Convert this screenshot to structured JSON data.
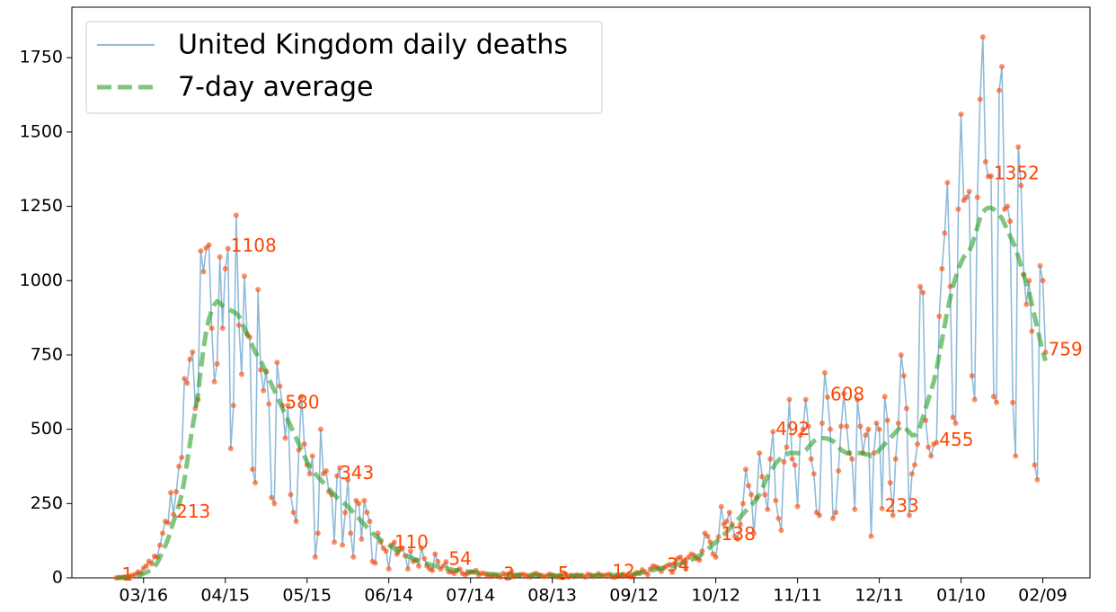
{
  "chart_data": {
    "type": "line",
    "categories": [
      null,
      null,
      null,
      null,
      null,
      null,
      null,
      null,
      null,
      null,
      "03/16",
      null,
      null,
      null,
      null,
      null,
      null,
      null,
      null,
      null,
      null,
      null,
      null,
      null,
      null,
      null,
      null,
      null,
      null,
      null,
      null,
      null,
      null,
      null,
      null,
      null,
      null,
      null,
      null,
      null,
      "04/15",
      null,
      null,
      null,
      null,
      null,
      null,
      null,
      null,
      null,
      null,
      null,
      null,
      null,
      null,
      null,
      null,
      null,
      null,
      null,
      null,
      null,
      null,
      null,
      null,
      null,
      null,
      null,
      null,
      null,
      "05/15",
      null,
      null,
      null,
      null,
      null,
      null,
      null,
      null,
      null,
      null,
      null,
      null,
      null,
      null,
      null,
      null,
      null,
      null,
      null,
      null,
      null,
      null,
      null,
      null,
      null,
      null,
      null,
      null,
      null,
      "06/14",
      null,
      null,
      null,
      null,
      null,
      null,
      null,
      null,
      null,
      null,
      null,
      null,
      null,
      null,
      null,
      null,
      null,
      null,
      null,
      null,
      null,
      null,
      null,
      null,
      null,
      null,
      null,
      null,
      null,
      "07/14",
      null,
      null,
      null,
      null,
      null,
      null,
      null,
      null,
      null,
      null,
      null,
      null,
      null,
      null,
      null,
      null,
      null,
      null,
      null,
      null,
      null,
      null,
      null,
      null,
      null,
      null,
      null,
      null,
      null,
      "08/13",
      null,
      null,
      null,
      null,
      null,
      null,
      null,
      null,
      null,
      null,
      null,
      null,
      null,
      null,
      null,
      null,
      null,
      null,
      null,
      null,
      null,
      null,
      null,
      null,
      null,
      null,
      null,
      null,
      null,
      "09/12",
      null,
      null,
      null,
      null,
      null,
      null,
      null,
      null,
      null,
      null,
      null,
      null,
      null,
      null,
      null,
      null,
      null,
      null,
      null,
      null,
      null,
      null,
      null,
      null,
      null,
      null,
      null,
      null,
      null,
      "10/12",
      null,
      null,
      null,
      null,
      null,
      null,
      null,
      null,
      null,
      null,
      null,
      null,
      null,
      null,
      null,
      null,
      null,
      null,
      null,
      null,
      null,
      null,
      null,
      null,
      null,
      null,
      null,
      null,
      null,
      "11/11",
      null,
      null,
      null,
      null,
      null,
      null,
      null,
      null,
      null,
      null,
      null,
      null,
      null,
      null,
      null,
      null,
      null,
      null,
      null,
      null,
      null,
      null,
      null,
      null,
      null,
      null,
      null,
      null,
      null,
      "12/11",
      null,
      null,
      null,
      null,
      null,
      null,
      null,
      null,
      null,
      null,
      null,
      null,
      null,
      null,
      null,
      null,
      null,
      null,
      null,
      null,
      null,
      null,
      null,
      null,
      null,
      null,
      null,
      null,
      null,
      "01/10",
      null,
      null,
      null,
      null,
      null,
      null,
      null,
      null,
      null,
      null,
      null,
      null,
      null,
      null,
      null,
      null,
      null,
      null,
      null,
      null,
      null,
      null,
      null,
      null,
      null,
      null,
      null,
      null,
      null,
      "02/09",
      null
    ],
    "series": [
      {
        "name": "United Kingdom daily deaths",
        "color": "#1f77b4",
        "marker_color": "#ff4500",
        "values": [
          0,
          1,
          1,
          3,
          3,
          6,
          8,
          12,
          20,
          16,
          33,
          40,
          56,
          48,
          73,
          70,
          110,
          150,
          190,
          185,
          287,
          213,
          290,
          375,
          405,
          670,
          655,
          735,
          760,
          570,
          600,
          1100,
          1030,
          1110,
          1120,
          840,
          660,
          720,
          1080,
          840,
          1040,
          1108,
          435,
          580,
          1220,
          850,
          685,
          1015,
          820,
          810,
          365,
          320,
          970,
          700,
          630,
          695,
          585,
          270,
          250,
          725,
          645,
          580,
          470,
          580,
          280,
          220,
          190,
          430,
          610,
          450,
          380,
          350,
          410,
          70,
          150,
          500,
          350,
          360,
          290,
          280,
          120,
          343,
          370,
          110,
          220,
          330,
          150,
          70,
          260,
          250,
          130,
          260,
          220,
          190,
          55,
          50,
          150,
          120,
          100,
          90,
          30,
          110,
          120,
          80,
          95,
          100,
          75,
          30,
          90,
          55,
          60,
          40,
          100,
          65,
          40,
          30,
          25,
          80,
          55,
          30,
          40,
          54,
          20,
          20,
          15,
          25,
          30,
          15,
          10,
          15,
          20,
          20,
          25,
          10,
          15,
          15,
          10,
          5,
          10,
          8,
          5,
          3,
          15,
          10,
          12,
          20,
          5,
          8,
          10,
          12,
          10,
          5,
          3,
          12,
          15,
          10,
          8,
          5,
          7,
          12,
          10,
          5,
          3,
          8,
          10,
          12,
          3,
          8,
          5,
          10,
          6,
          8,
          3,
          12,
          10,
          5,
          8,
          14,
          6,
          8,
          10,
          12,
          3,
          2,
          10,
          8,
          12,
          7,
          14,
          3,
          10,
          18,
          15,
          27,
          20,
          11,
          30,
          40,
          37,
          33,
          22,
          34,
          40,
          45,
          19,
          50,
          65,
          70,
          55,
          30,
          70,
          80,
          76,
          65,
          60,
          90,
          150,
          140,
          120,
          80,
          70,
          138,
          240,
          180,
          190,
          220,
          180,
          140,
          130,
          180,
          250,
          365,
          310,
          280,
          150,
          270,
          420,
          340,
          280,
          230,
          400,
          492,
          260,
          200,
          160,
          390,
          440,
          600,
          400,
          380,
          240,
          480,
          500,
          600,
          510,
          400,
          350,
          220,
          210,
          520,
          690,
          608,
          500,
          200,
          220,
          360,
          510,
          620,
          510,
          420,
          400,
          230,
          600,
          510,
          420,
          480,
          500,
          140,
          420,
          520,
          500,
          233,
          610,
          530,
          320,
          210,
          400,
          520,
          750,
          680,
          570,
          210,
          350,
          380,
          450,
          980,
          960,
          530,
          440,
          410,
          450,
          455,
          880,
          1040,
          1160,
          1330,
          980,
          540,
          520,
          1240,
          1560,
          1270,
          1280,
          1300,
          680,
          600,
          1280,
          1610,
          1820,
          1400,
          1350,
          1352,
          610,
          590,
          1640,
          1720,
          1240,
          1250,
          1200,
          590,
          410,
          1450,
          1320,
          1020,
          920,
          1000,
          830,
          380,
          330,
          1050,
          1000,
          759
        ]
      },
      {
        "name": "7-day average",
        "color": "#2ca02c",
        "values": [
          0,
          0,
          1,
          1,
          2,
          3,
          4,
          6,
          8,
          10,
          14,
          18,
          23,
          28,
          36,
          50,
          68,
          88,
          108,
          130,
          160,
          190,
          215,
          245,
          280,
          330,
          390,
          450,
          510,
          560,
          620,
          700,
          770,
          830,
          870,
          900,
          920,
          930,
          925,
          915,
          910,
          905,
          900,
          895,
          890,
          880,
          860,
          840,
          820,
          800,
          780,
          760,
          745,
          730,
          710,
          690,
          670,
          650,
          630,
          610,
          590,
          570,
          550,
          530,
          510,
          490,
          470,
          450,
          430,
          410,
          390,
          375,
          360,
          350,
          340,
          330,
          320,
          310,
          300,
          290,
          280,
          270,
          262,
          255,
          248,
          240,
          230,
          220,
          210,
          200,
          190,
          180,
          170,
          160,
          150,
          142,
          135,
          128,
          122,
          116,
          110,
          104,
          98,
          92,
          86,
          80,
          76,
          72,
          68,
          64,
          60,
          57,
          54,
          51,
          48,
          45,
          42,
          40,
          38,
          36,
          34,
          32,
          30,
          28,
          26,
          25,
          24,
          23,
          22,
          21,
          20,
          19,
          18,
          17,
          16,
          15,
          14,
          13,
          12,
          12,
          11,
          11,
          10,
          10,
          10,
          10,
          10,
          10,
          10,
          10,
          10,
          9,
          9,
          9,
          9,
          9,
          9,
          9,
          9,
          8,
          8,
          8,
          8,
          8,
          8,
          8,
          8,
          8,
          8,
          8,
          8,
          8,
          8,
          8,
          8,
          8,
          8,
          9,
          9,
          9,
          9,
          9,
          9,
          9,
          9,
          10,
          10,
          10,
          11,
          12,
          13,
          14,
          16,
          18,
          20,
          22,
          24,
          26,
          28,
          30,
          32,
          34,
          36,
          38,
          40,
          42,
          45,
          48,
          50,
          52,
          55,
          60,
          65,
          70,
          75,
          80,
          88,
          96,
          104,
          112,
          120,
          128,
          136,
          145,
          155,
          165,
          175,
          185,
          195,
          205,
          215,
          225,
          235,
          245,
          255,
          265,
          280,
          300,
          320,
          340,
          355,
          370,
          385,
          395,
          405,
          410,
          415,
          420,
          420,
          420,
          420,
          420,
          425,
          430,
          440,
          450,
          460,
          465,
          470,
          470,
          470,
          468,
          465,
          460,
          450,
          440,
          430,
          425,
          420,
          420,
          420,
          420,
          420,
          420,
          420,
          415,
          415,
          410,
          415,
          420,
          430,
          440,
          450,
          460,
          470,
          480,
          490,
          500,
          510,
          510,
          500,
          490,
          480,
          480,
          490,
          510,
          540,
          570,
          600,
          630,
          660,
          700,
          750,
          800,
          850,
          900,
          940,
          980,
          1010,
          1040,
          1060,
          1080,
          1090,
          1100,
          1120,
          1150,
          1180,
          1210,
          1230,
          1240,
          1245,
          1245,
          1240,
          1230,
          1220,
          1210,
          1190,
          1170,
          1150,
          1130,
          1110,
          1080,
          1050,
          1020,
          990,
          960,
          920,
          880,
          840,
          800,
          760,
          730
        ]
      }
    ],
    "ylim": [
      0,
      1920
    ],
    "yticks": [
      0,
      250,
      500,
      750,
      1000,
      1250,
      1500,
      1750
    ],
    "grid": false,
    "legend": "upper left"
  }
}
